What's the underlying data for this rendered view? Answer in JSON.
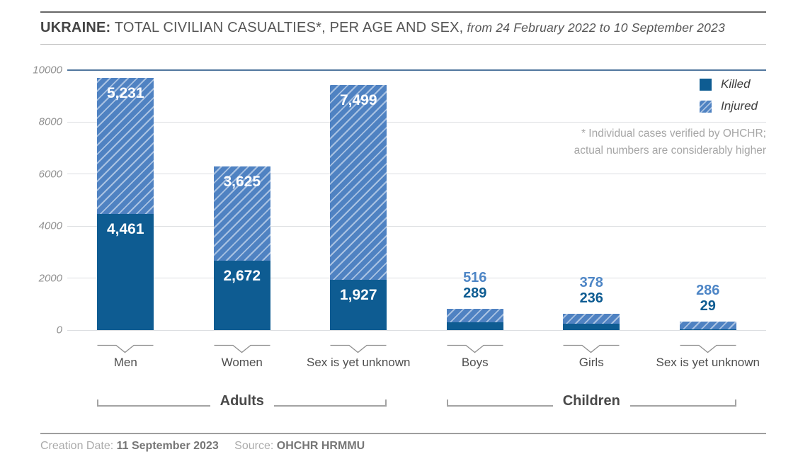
{
  "title": {
    "prefix": "UKRAINE:",
    "main": " TOTAL CIVILIAN CASUALTIES*, PER AGE AND SEX,",
    "date_range": " from 24 February 2022 to 10 September 2023"
  },
  "legend": {
    "killed": "Killed",
    "injured": "Injured"
  },
  "note": {
    "line1": "* Individual cases verified by OHCHR;",
    "line2": "actual numbers are considerably higher"
  },
  "footer": {
    "creation_label": "Creation Date:",
    "creation_date": "11 September 2023",
    "source_label": "Source:",
    "source_value": "OHCHR HRMMU"
  },
  "colors": {
    "killed": "#0e5c92",
    "injured": "#4f82c2",
    "injured_stripe": "#a9c2e2",
    "top_gridline": "#51779e",
    "gridline": "#dcdee1"
  },
  "chart_data": {
    "type": "bar",
    "stacked": true,
    "title": "UKRAINE: TOTAL CIVILIAN CASUALTIES, PER AGE AND SEX, from 24 February 2022 to 10 September 2023",
    "categories": [
      "Men",
      "Women",
      "Sex is yet unknown",
      "Boys",
      "Girls",
      "Sex is yet unknown"
    ],
    "groups": [
      {
        "label": "Adults",
        "span": [
          0,
          2
        ]
      },
      {
        "label": "Children",
        "span": [
          3,
          5
        ]
      }
    ],
    "series": [
      {
        "name": "Killed",
        "values": [
          4461,
          2672,
          1927,
          289,
          236,
          29
        ]
      },
      {
        "name": "Injured",
        "values": [
          5231,
          3625,
          7499,
          516,
          378,
          286
        ]
      }
    ],
    "value_labels": {
      "killed": [
        "4,461",
        "2,672",
        "1,927",
        "289",
        "236",
        "29"
      ],
      "injured": [
        "5,231",
        "3,625",
        "7,499",
        "516",
        "378",
        "286"
      ]
    },
    "xlabel": "",
    "ylabel": "",
    "ylim": [
      0,
      10000
    ],
    "yticks": [
      0,
      2000,
      4000,
      6000,
      8000,
      10000
    ],
    "ytick_labels": [
      "0",
      "2000",
      "4000",
      "6000",
      "8000",
      "10000"
    ],
    "grid": true,
    "legend_position": "top-right"
  }
}
